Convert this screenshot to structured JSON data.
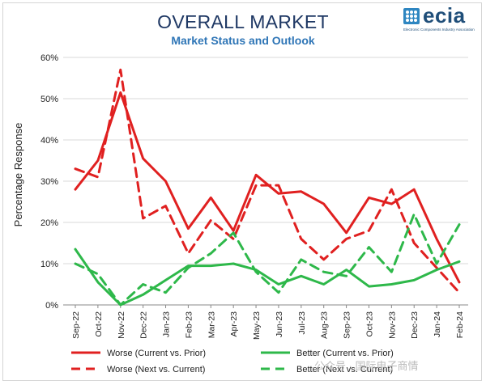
{
  "header": {
    "title": "OVERALL MARKET",
    "subtitle": "Market Status and Outlook"
  },
  "logo": {
    "word": "ecia",
    "tagline": "Electronic Components Industry Association"
  },
  "watermark": "公众号 · 国际电子商情",
  "colors": {
    "worse": "#e02020",
    "better": "#2eb84a",
    "title": "#1f3864",
    "subtitle": "#2e75b6"
  },
  "chart_data": {
    "type": "line",
    "title": "OVERALL MARKET",
    "subtitle": "Market Status and Outlook",
    "ylabel": "Percentage Response",
    "xlabel": "",
    "ylim": [
      0,
      60
    ],
    "yticks": [
      "0%",
      "10%",
      "20%",
      "30%",
      "40%",
      "50%",
      "60%"
    ],
    "grid": true,
    "legend_position": "bottom",
    "categories": [
      "Sep-22",
      "Oct-22",
      "Nov-22",
      "Dec-22",
      "Jan-23",
      "Feb-23",
      "Mar-23",
      "Apr-23",
      "May-23",
      "Jun-23",
      "Jul-23",
      "Aug-23",
      "Sep-23",
      "Oct-23",
      "Nov-23",
      "Dec-23",
      "Jan-24",
      "Feb-24"
    ],
    "series": [
      {
        "name": "Worse (Current vs. Prior)",
        "color": "#e02020",
        "dash": false,
        "values": [
          28,
          35,
          51.5,
          35.5,
          30,
          18.5,
          26,
          18,
          31.5,
          27,
          27.5,
          24.5,
          17.5,
          26,
          24.5,
          28,
          16,
          5.5
        ]
      },
      {
        "name": "Worse (Next vs. Current)",
        "color": "#e02020",
        "dash": true,
        "values": [
          33,
          31,
          57,
          21,
          24,
          12.5,
          20.5,
          16,
          29,
          29,
          16,
          11,
          16,
          18,
          28,
          15,
          9,
          3
        ]
      },
      {
        "name": "Better (Current vs. Prior)",
        "color": "#2eb84a",
        "dash": false,
        "values": [
          13.5,
          5.5,
          0,
          2.5,
          6,
          9.5,
          9.5,
          10,
          8.5,
          5,
          7,
          5,
          8.5,
          4.5,
          5,
          6,
          8.5,
          10.5
        ]
      },
      {
        "name": "Better (Next vs. Current)",
        "color": "#2eb84a",
        "dash": true,
        "values": [
          10,
          7.5,
          0,
          5,
          3,
          9,
          12.5,
          17.5,
          8,
          3,
          11,
          8,
          7,
          14,
          8,
          22,
          10,
          19.5
        ]
      }
    ]
  }
}
